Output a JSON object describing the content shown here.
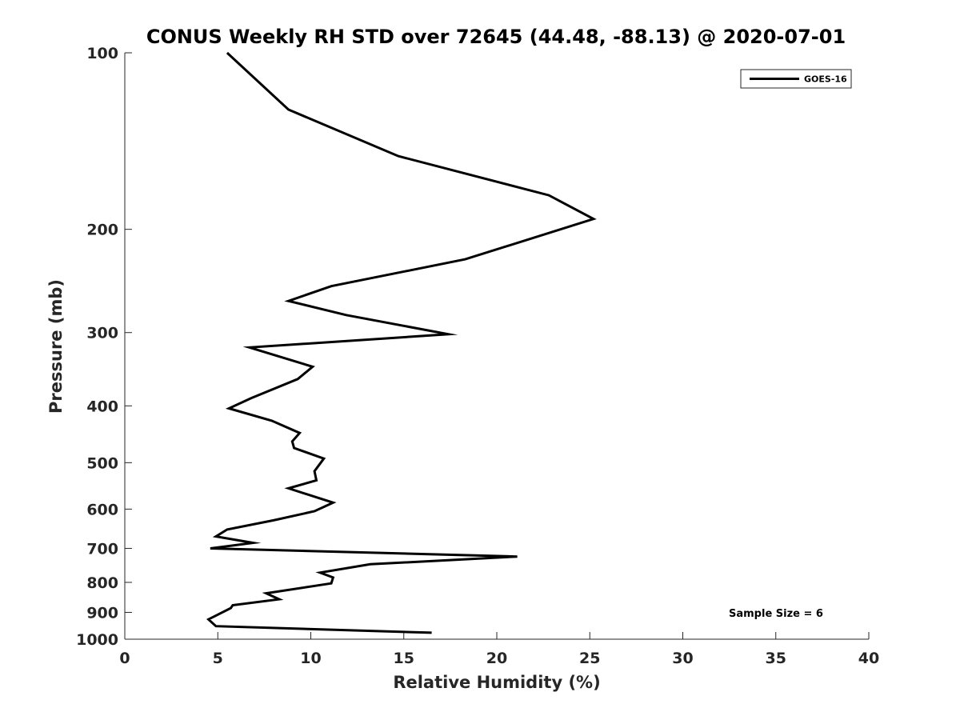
{
  "chart_data": {
    "type": "line",
    "title": "CONUS Weekly RH STD over 72645 (44.48, -88.13) @ 2020-07-01",
    "xlabel": "Relative Humidity (%)",
    "ylabel": "Pressure (mb)",
    "xlim": [
      0,
      40
    ],
    "ylim": [
      100,
      1000
    ],
    "y_scale": "log",
    "y_reversed": true,
    "x_ticks": [
      0,
      5,
      10,
      15,
      20,
      25,
      30,
      35,
      40
    ],
    "y_ticks": [
      100,
      200,
      300,
      400,
      500,
      600,
      700,
      800,
      900,
      1000
    ],
    "grid": false,
    "legend_position": "top-right",
    "annotation": "Sample Size = 6",
    "series": [
      {
        "name": "GOES-16",
        "color": "#000000",
        "x": [
          5.5,
          8.8,
          14.7,
          22.8,
          25.2,
          18.3,
          11.1,
          8.8,
          11.9,
          17.4,
          6.7,
          10.1,
          9.3,
          6.8,
          5.6,
          7.9,
          9.4,
          9.0,
          9.1,
          10.7,
          10.2,
          10.3,
          8.8,
          11.2,
          10.2,
          8.0,
          5.5,
          4.9,
          6.9,
          4.6,
          21.1,
          13.2,
          10.5,
          11.2,
          11.1,
          7.6,
          8.3,
          5.8,
          5.7,
          4.5,
          4.9,
          16.5
        ],
        "y": [
          100,
          125,
          150,
          175,
          192,
          225,
          250,
          265,
          280,
          302,
          318,
          343,
          360,
          388,
          404,
          424,
          445,
          460,
          472,
          492,
          517,
          536,
          553,
          585,
          605,
          627,
          650,
          668,
          685,
          700,
          723,
          745,
          770,
          785,
          803,
          835,
          855,
          875,
          885,
          925,
          950,
          975
        ]
      }
    ]
  }
}
